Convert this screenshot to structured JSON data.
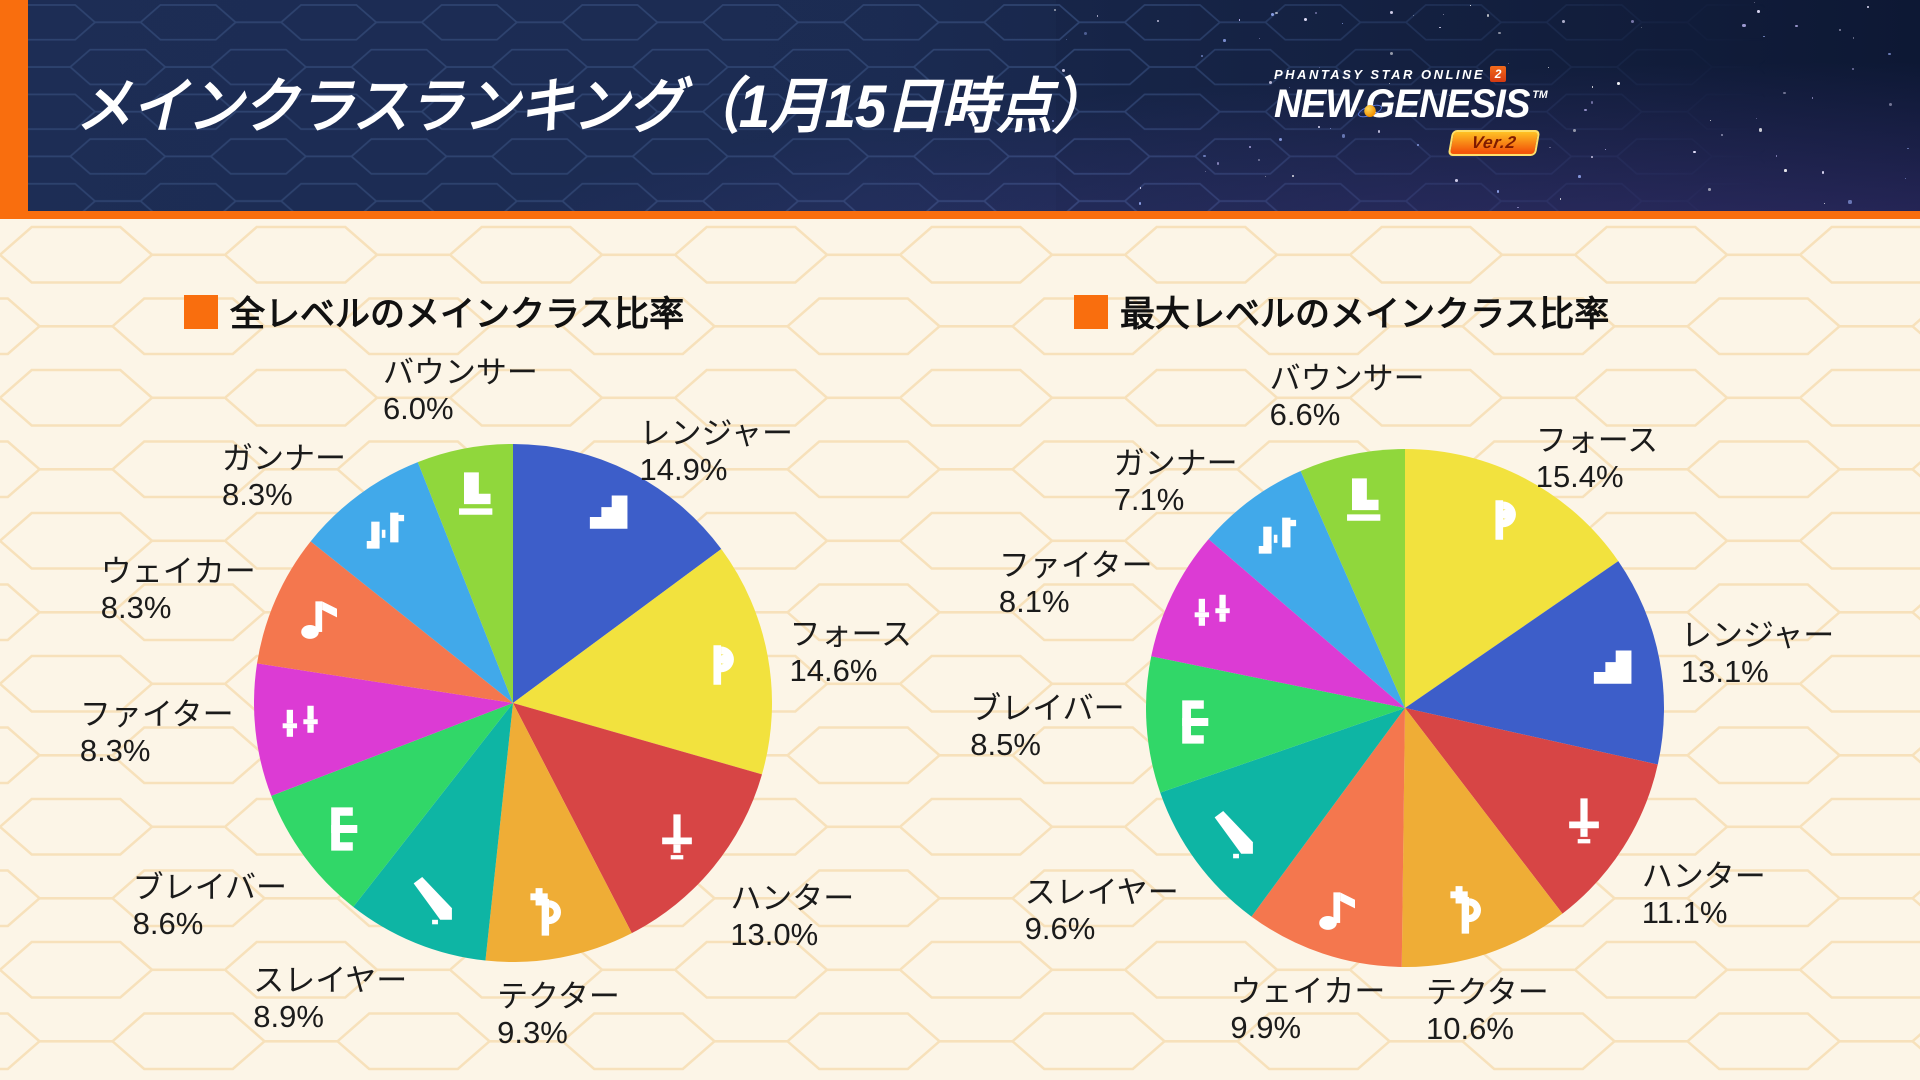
{
  "header": {
    "title": "メインクラスランキング（1月15日時点）",
    "logo": {
      "brand_top": "PHANTASY STAR ONLINE",
      "brand_top_num": "2",
      "brand_main_left": "NEW",
      "brand_main_right": "GENESIS",
      "trademark": "TM",
      "version_badge": "Ver.2"
    }
  },
  "theme": {
    "accent_orange": "#F96E0E",
    "header_navy": "#1B2B52",
    "header_hex_line": "#2E436F",
    "body_cream": "#FCF5E7",
    "body_hex_line": "#F7DEB4",
    "label_text": "#1B1B1B",
    "icon_white": "#FFFFFF"
  },
  "chart_data": [
    {
      "type": "pie",
      "id": "all-levels",
      "title": "全レベルのメインクラス比率",
      "unit": "%",
      "start_angle": "12-oclock",
      "direction": "clockwise",
      "slices": [
        {
          "label": "レンジャー",
          "display": "14.9%",
          "value": 14.9,
          "color": "#3D5EC9",
          "icon": "ranger-class-icon"
        },
        {
          "label": "フォース",
          "display": "14.6%",
          "value": 14.6,
          "color": "#F2E23E",
          "icon": "force-class-icon"
        },
        {
          "label": "ハンター",
          "display": "13.0%",
          "value": 13.0,
          "color": "#D74545",
          "icon": "hunter-class-icon"
        },
        {
          "label": "テクター",
          "display": "9.3%",
          "value": 9.3,
          "color": "#EFAD36",
          "icon": "techter-class-icon"
        },
        {
          "label": "スレイヤー",
          "display": "8.9%",
          "value": 8.9,
          "color": "#0EB5A4",
          "icon": "slayer-class-icon"
        },
        {
          "label": "ブレイバー",
          "display": "8.6%",
          "value": 8.6,
          "color": "#31D768",
          "icon": "braver-class-icon"
        },
        {
          "label": "ファイター",
          "display": "8.3%",
          "value": 8.3,
          "color": "#DC3BD4",
          "icon": "fighter-class-icon"
        },
        {
          "label": "ウェイカー",
          "display": "8.3%",
          "value": 8.3,
          "color": "#F4774E",
          "icon": "waker-class-icon"
        },
        {
          "label": "ガンナー",
          "display": "8.3%",
          "value": 8.3,
          "color": "#41A9EA",
          "icon": "gunner-class-icon"
        },
        {
          "label": "バウンサー",
          "display": "6.0%",
          "value": 6.0,
          "color": "#90D73C",
          "icon": "bouncer-class-icon"
        }
      ]
    },
    {
      "type": "pie",
      "id": "max-level",
      "title": "最大レベルのメインクラス比率",
      "unit": "%",
      "start_angle": "12-oclock",
      "direction": "clockwise",
      "slices": [
        {
          "label": "フォース",
          "display": "15.4%",
          "value": 15.4,
          "color": "#F2E23E",
          "icon": "force-class-icon"
        },
        {
          "label": "レンジャー",
          "display": "13.1%",
          "value": 13.1,
          "color": "#3D5EC9",
          "icon": "ranger-class-icon"
        },
        {
          "label": "ハンター",
          "display": "11.1%",
          "value": 11.1,
          "color": "#D74545",
          "icon": "hunter-class-icon"
        },
        {
          "label": "テクター",
          "display": "10.6%",
          "value": 10.6,
          "color": "#EFAD36",
          "icon": "techter-class-icon"
        },
        {
          "label": "ウェイカー",
          "display": "9.9%",
          "value": 9.9,
          "color": "#F4774E",
          "icon": "waker-class-icon"
        },
        {
          "label": "スレイヤー",
          "display": "9.6%",
          "value": 9.6,
          "color": "#0EB5A4",
          "icon": "slayer-class-icon"
        },
        {
          "label": "ブレイバー",
          "display": "8.5%",
          "value": 8.5,
          "color": "#31D768",
          "icon": "braver-class-icon"
        },
        {
          "label": "ファイター",
          "display": "8.1%",
          "value": 8.1,
          "color": "#DC3BD4",
          "icon": "fighter-class-icon"
        },
        {
          "label": "ガンナー",
          "display": "7.1%",
          "value": 7.1,
          "color": "#41A9EA",
          "icon": "gunner-class-icon"
        },
        {
          "label": "バウンサー",
          "display": "6.6%",
          "value": 6.6,
          "color": "#90D73C",
          "icon": "bouncer-class-icon"
        }
      ]
    }
  ]
}
